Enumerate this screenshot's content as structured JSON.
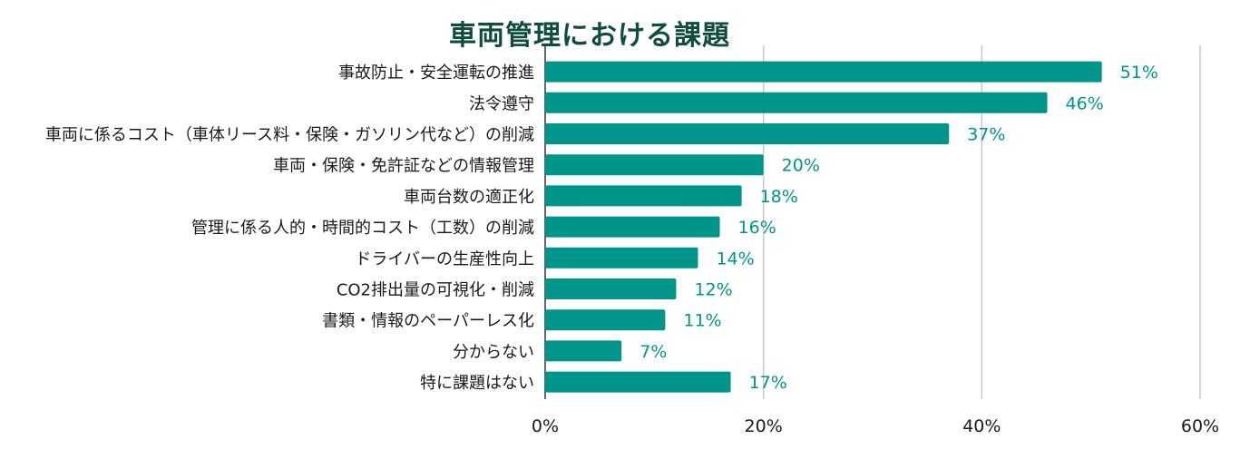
{
  "chart_data": {
    "type": "bar",
    "orientation": "horizontal",
    "title": "車両管理における課題",
    "categories": [
      "事故防止・安全運転の推進",
      "法令遵守",
      "車両に係るコスト（車体リース料・保険・ガソリン代など）の削減",
      "車両・保険・免許証などの情報管理",
      "車両台数の適正化",
      "管理に係る人的・時間的コスト（工数）の削減",
      "ドライバーの生産性向上",
      "CO2排出量の可視化・削減",
      "書類・情報のペーパーレス化",
      "分からない",
      "特に課題はない"
    ],
    "values": [
      51,
      46,
      37,
      20,
      18,
      16,
      14,
      12,
      11,
      7,
      17
    ],
    "value_labels": [
      "51%",
      "46%",
      "37%",
      "20%",
      "18%",
      "16%",
      "14%",
      "12%",
      "11%",
      "7%",
      "17%"
    ],
    "xlim": [
      0,
      60
    ],
    "xticks": [
      0,
      20,
      40,
      60
    ],
    "xtick_labels": [
      "0%",
      "20%",
      "40%",
      "60%"
    ],
    "xlabel": "",
    "ylabel": "",
    "grid": true,
    "legend": "none",
    "bar_color": "#00958a",
    "label_color": "#00958a"
  }
}
